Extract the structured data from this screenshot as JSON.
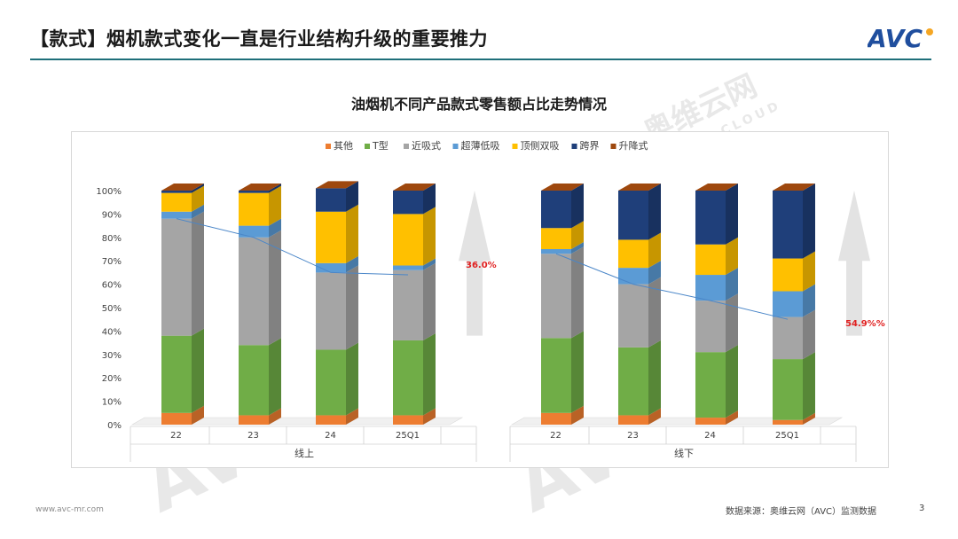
{
  "header": {
    "title": "【款式】烟机款式变化一直是行业结构升级的重要推力",
    "logo_text": "AVC"
  },
  "footer": {
    "website": "www.avc-mr.com",
    "source": "数据来源：奥维云网（AVC）监测数据",
    "page": "3"
  },
  "watermark": {
    "brand": "奥维云网",
    "sub": "ALL VIEW CLOUD",
    "mark": "AVC"
  },
  "colors": {
    "其他": "#ed7d31",
    "T型": "#70ad47",
    "近吸式": "#a5a5a5",
    "超薄低吸": "#5b9bd5",
    "顶侧双吸": "#ffc000",
    "跨界": "#1f3f7a",
    "升降式": "#9e480e",
    "line": "#4a86c8",
    "arrow": "#e3e3e3",
    "annotation": "#e02020"
  },
  "chart_data": {
    "type": "bar",
    "stacked": true,
    "title": "油烟机不同产品款式零售额占比走势情况",
    "legend": [
      "其他",
      "T型",
      "近吸式",
      "超薄低吸",
      "顶侧双吸",
      "跨界",
      "升降式"
    ],
    "legend_position": "top",
    "yticks": [
      "0%",
      "10%",
      "20%",
      "30%",
      "40%",
      "50%",
      "60%",
      "70%",
      "80%",
      "90%",
      "100%"
    ],
    "ylim": [
      0,
      100
    ],
    "groups": [
      {
        "name": "线上",
        "categories": [
          "22",
          "23",
          "24",
          "25Q1"
        ],
        "series": [
          {
            "name": "其他",
            "values": [
              5,
              4,
              4,
              4
            ]
          },
          {
            "name": "T型",
            "values": [
              33,
              30,
              28,
              32
            ]
          },
          {
            "name": "近吸式",
            "values": [
              50,
              46,
              33,
              30
            ]
          },
          {
            "name": "超薄低吸",
            "values": [
              3,
              5,
              4,
              2
            ]
          },
          {
            "name": "顶侧双吸",
            "values": [
              8,
              14,
              22,
              22
            ]
          },
          {
            "name": "跨界",
            "values": [
              1,
              1,
              10,
              10
            ]
          },
          {
            "name": "升降式",
            "values": [
              0,
              0,
              0,
              0
            ]
          }
        ],
        "trend_line": [
          88,
          80,
          65,
          64
        ],
        "annotation": "36.0%"
      },
      {
        "name": "线下",
        "categories": [
          "22",
          "23",
          "24",
          "25Q1"
        ],
        "series": [
          {
            "name": "其他",
            "values": [
              5,
              4,
              3,
              2
            ]
          },
          {
            "name": "T型",
            "values": [
              32,
              29,
              28,
              26
            ]
          },
          {
            "name": "近吸式",
            "values": [
              36,
              27,
              22,
              18
            ]
          },
          {
            "name": "超薄低吸",
            "values": [
              2,
              7,
              11,
              11
            ]
          },
          {
            "name": "顶侧双吸",
            "values": [
              9,
              12,
              13,
              14
            ]
          },
          {
            "name": "跨界",
            "values": [
              16,
              21,
              23,
              29
            ]
          },
          {
            "name": "升降式",
            "values": [
              0,
              0,
              0,
              0
            ]
          }
        ],
        "trend_line": [
          73,
          60,
          53,
          45
        ],
        "annotation": "54.9%%"
      }
    ]
  }
}
